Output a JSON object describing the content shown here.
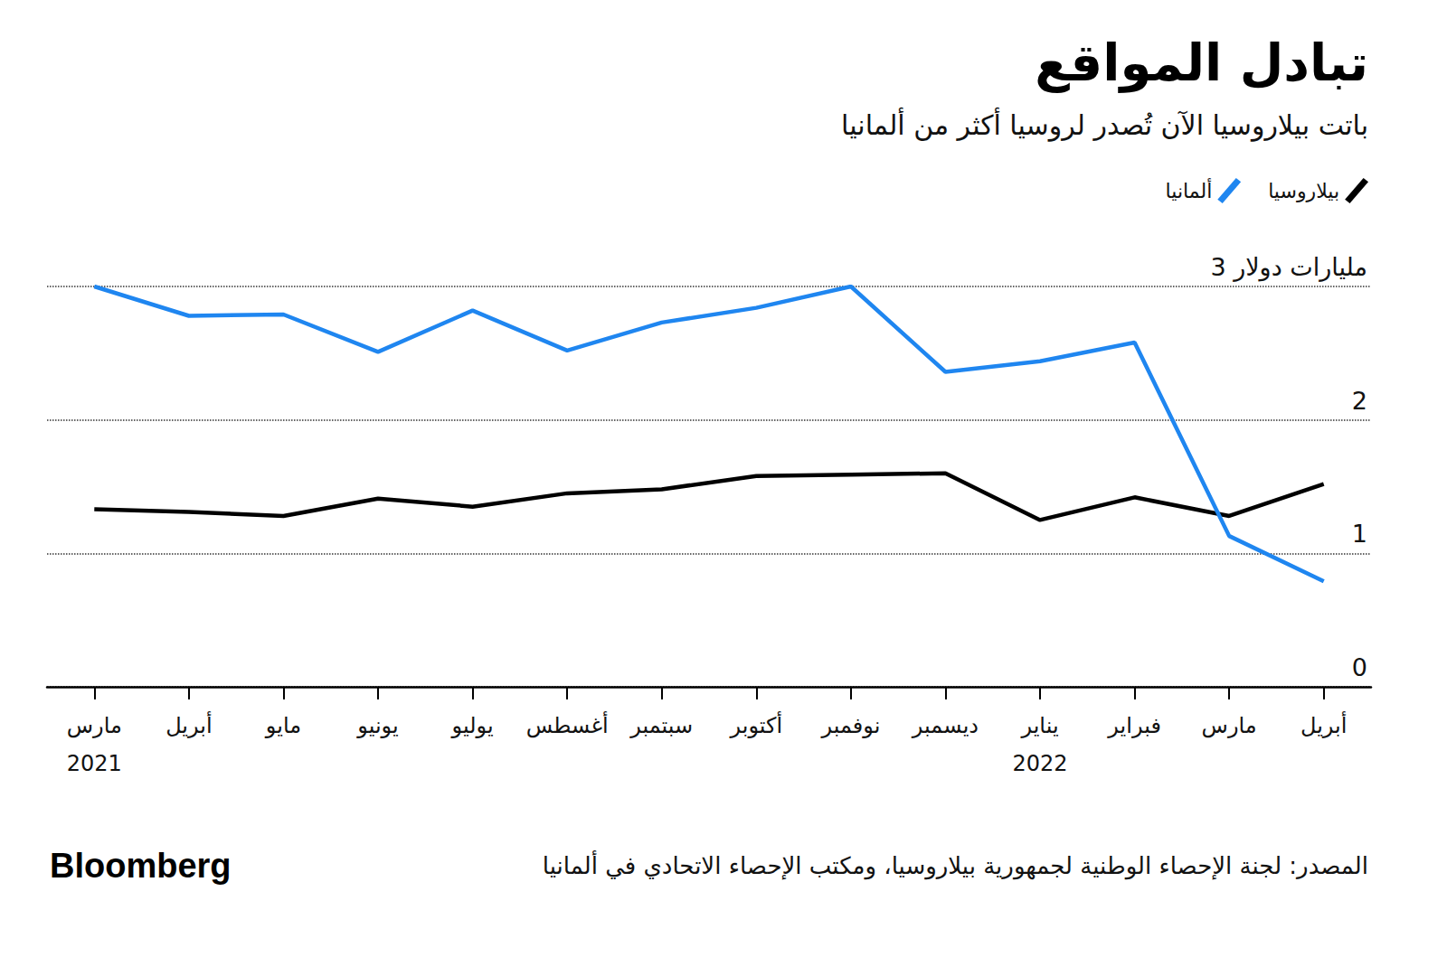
{
  "chart_data": {
    "type": "line",
    "title": "تبادل المواقع",
    "subtitle": "باتت بيلاروسيا الآن تُصدر لروسيا أكثر من ألمانيا",
    "source": "المصدر: لجنة الإحصاء الوطنية لجمهورية بيلاروسيا، ومكتب الإحصاء الاتحادي في ألمانيا",
    "credit": "Bloomberg",
    "categories": [
      "مارس\n2021",
      "أبريل",
      "مايو",
      "يونيو",
      "يوليو",
      "أغسطس",
      "سبتمبر",
      "أكتوبر",
      "نوفمبر",
      "ديسمبر",
      "يناير\n2022",
      "فبراير",
      "مارس",
      "أبريل"
    ],
    "series": [
      {
        "name": "بيلاروسيا",
        "color": "#000000",
        "values": [
          1.33,
          1.31,
          1.28,
          1.41,
          1.35,
          1.45,
          1.48,
          1.58,
          1.59,
          1.6,
          1.25,
          1.42,
          1.28,
          1.52
        ]
      },
      {
        "name": "ألمانيا",
        "color": "#1f86f0",
        "values": [
          3.0,
          2.78,
          2.79,
          2.51,
          2.82,
          2.52,
          2.73,
          2.84,
          3.0,
          2.36,
          2.44,
          2.58,
          1.13,
          0.79
        ]
      }
    ],
    "ylim": [
      0,
      3
    ],
    "yticks": [
      0,
      1,
      2,
      {
        "value": 3,
        "label": "3 مليارات دولار"
      }
    ],
    "grid": true,
    "legend": "top-right",
    "marker": "none"
  }
}
